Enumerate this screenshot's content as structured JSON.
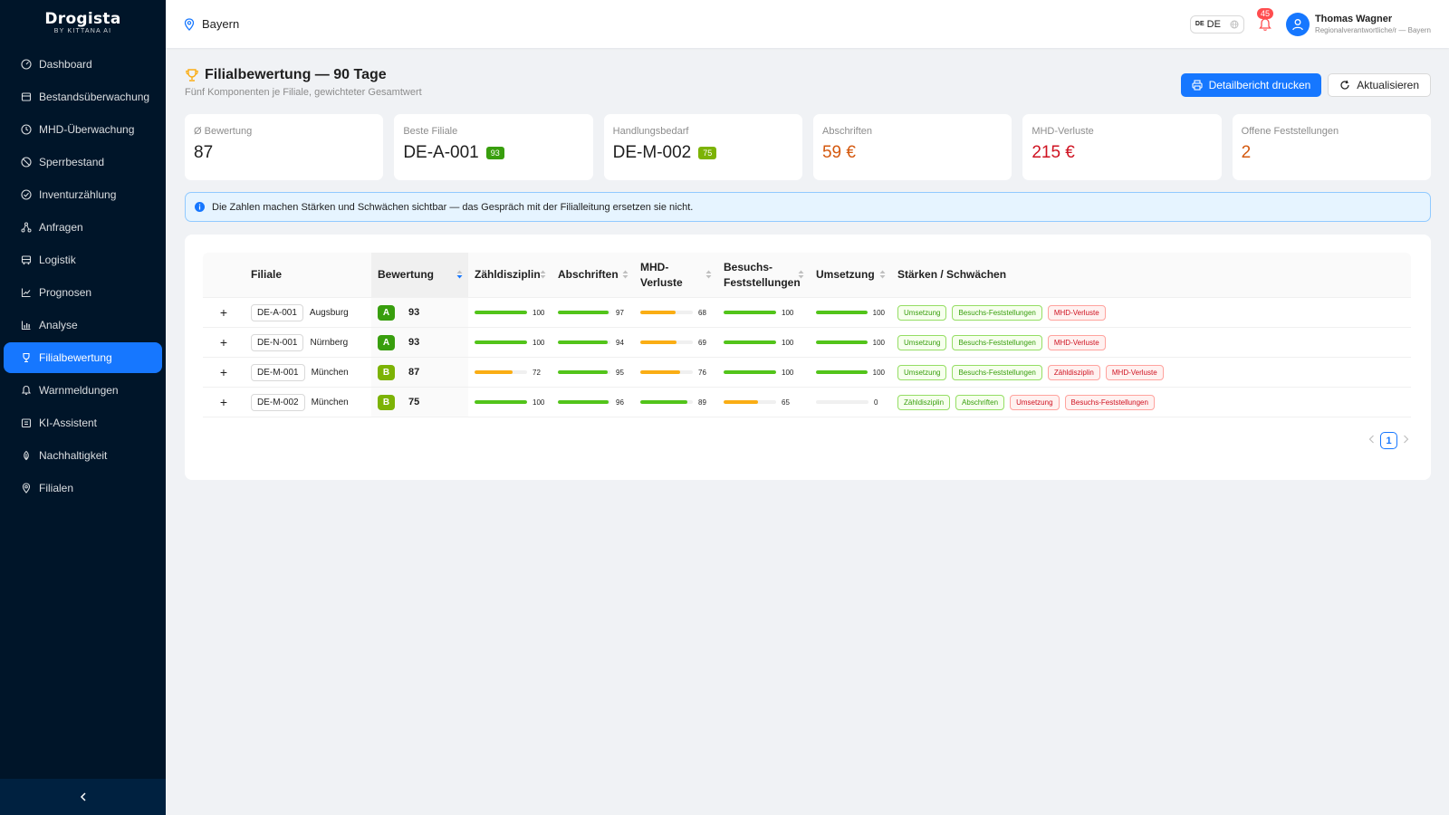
{
  "brand": {
    "name": "Drogista",
    "subtitle": "BY KITTANA AI"
  },
  "sidebar": {
    "items": [
      {
        "label": "Dashboard",
        "icon": "dashboard-icon"
      },
      {
        "label": "Bestandsüberwachung",
        "icon": "inventory-icon"
      },
      {
        "label": "MHD-Überwachung",
        "icon": "clock-icon"
      },
      {
        "label": "Sperrbestand",
        "icon": "stop-icon"
      },
      {
        "label": "Inventurzählung",
        "icon": "check-circle-icon"
      },
      {
        "label": "Anfragen",
        "icon": "share-icon"
      },
      {
        "label": "Logistik",
        "icon": "truck-icon"
      },
      {
        "label": "Prognosen",
        "icon": "line-chart-icon"
      },
      {
        "label": "Analyse",
        "icon": "bar-chart-icon"
      },
      {
        "label": "Filialbewertung",
        "icon": "trophy-icon",
        "active": true
      },
      {
        "label": "Warnmeldungen",
        "icon": "bell-icon"
      },
      {
        "label": "KI-Assistent",
        "icon": "robot-icon"
      },
      {
        "label": "Nachhaltigkeit",
        "icon": "leaf-icon"
      },
      {
        "label": "Filialen",
        "icon": "location-icon"
      }
    ]
  },
  "header": {
    "region": "Bayern",
    "language": {
      "flag": "DE",
      "label": "DE"
    },
    "notifications": "45",
    "user": {
      "name": "Thomas Wagner",
      "role": "Regionalverantwortliche/r — Bayern"
    }
  },
  "page": {
    "title": "Filialbewertung — 90 Tage",
    "subtitle": "Fünf Komponenten je Filiale, gewichteter Gesamtwert",
    "print_button": "Detailbericht drucken",
    "refresh_button": "Aktualisieren"
  },
  "kpis": [
    {
      "label": "Ø Bewertung",
      "value": "87",
      "badge": ""
    },
    {
      "label": "Beste Filiale",
      "value": "DE-A-001",
      "badge": "93"
    },
    {
      "label": "Handlungsbedarf",
      "value": "DE-M-002",
      "badge": "75"
    },
    {
      "label": "Abschriften",
      "value": "59 €",
      "badge": ""
    },
    {
      "label": "MHD-Verluste",
      "value": "215 €",
      "badge": ""
    },
    {
      "label": "Offene Feststellungen",
      "value": "2",
      "badge": ""
    }
  ],
  "alert": "Die Zahlen machen Stärken und Schwächen sichtbar — das Gespräch mit der Filialleitung ersetzen sie nicht.",
  "table": {
    "columns": {
      "branch": "Filiale",
      "rating": "Bewertung",
      "count": "Zähldisziplin",
      "writeoff": "Abschriften",
      "mhd": "MHD-Verluste",
      "visit": "Besuchs-Feststellungen",
      "impl": "Umsetzung",
      "sw": "Stärken / Schwächen"
    },
    "rows": [
      {
        "expand": "+",
        "code": "DE-A-001",
        "city": "Augsburg",
        "grade": "A",
        "score": "93",
        "metrics": [
          "100",
          "97",
          "68",
          "100",
          "100"
        ],
        "tags": [
          {
            "text": "Umsetzung",
            "type": "pos"
          },
          {
            "text": "Besuchs-Feststellungen",
            "type": "pos"
          },
          {
            "text": "MHD-Verluste",
            "type": "neg"
          }
        ]
      },
      {
        "expand": "+",
        "code": "DE-N-001",
        "city": "Nürnberg",
        "grade": "A",
        "score": "93",
        "metrics": [
          "100",
          "94",
          "69",
          "100",
          "100"
        ],
        "tags": [
          {
            "text": "Umsetzung",
            "type": "pos"
          },
          {
            "text": "Besuchs-Feststellungen",
            "type": "pos"
          },
          {
            "text": "MHD-Verluste",
            "type": "neg"
          }
        ]
      },
      {
        "expand": "+",
        "code": "DE-M-001",
        "city": "München",
        "grade": "B",
        "score": "87",
        "metrics": [
          "72",
          "95",
          "76",
          "100",
          "100"
        ],
        "tags": [
          {
            "text": "Umsetzung",
            "type": "pos"
          },
          {
            "text": "Besuchs-Feststellungen",
            "type": "pos"
          },
          {
            "text": "Zähldisziplin",
            "type": "neg"
          },
          {
            "text": "MHD-Verluste",
            "type": "neg"
          }
        ]
      },
      {
        "expand": "+",
        "code": "DE-M-002",
        "city": "München",
        "grade": "B",
        "score": "75",
        "metrics": [
          "100",
          "96",
          "89",
          "65",
          "0"
        ],
        "tags": [
          {
            "text": "Zähldisziplin",
            "type": "pos"
          },
          {
            "text": "Abschriften",
            "type": "pos"
          },
          {
            "text": "Umsetzung",
            "type": "neg"
          },
          {
            "text": "Besuchs-Feststellungen",
            "type": "neg"
          }
        ]
      }
    ]
  },
  "pagination": {
    "current": "1"
  },
  "colors": {
    "primary": "#1677ff",
    "sidebar": "#001529",
    "good": "#52c41a",
    "warn": "#faad14",
    "bad": "#cf1322",
    "orange": "#d4590f"
  }
}
